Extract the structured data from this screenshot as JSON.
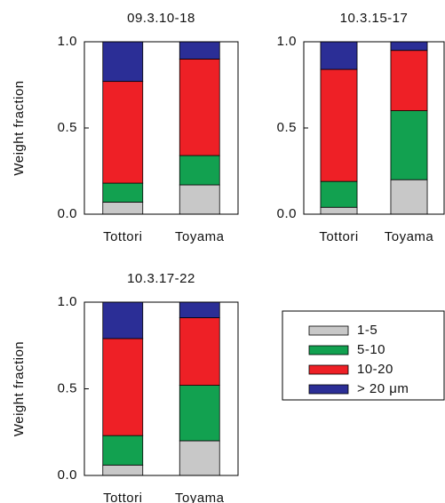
{
  "chart_data": [
    {
      "type": "stacked_bar",
      "title": "09.3.10-18",
      "y_label": "Weight fraction",
      "categories": [
        "Tottori",
        "Toyama"
      ],
      "series": [
        {
          "name": "1-5",
          "color": "#c8c8c8",
          "values": [
            0.07,
            0.17
          ]
        },
        {
          "name": "5-10",
          "color": "#12a150",
          "values": [
            0.11,
            0.17
          ]
        },
        {
          "name": "10-20",
          "color": "#ee2026",
          "values": [
            0.59,
            0.56
          ]
        },
        {
          "name": "> 20 μm",
          "color": "#2b2e96",
          "values": [
            0.23,
            0.1
          ]
        }
      ],
      "ylim": [
        0,
        1
      ],
      "yticks": [
        {
          "value": 0,
          "label": "0.0"
        },
        0.5,
        {
          "value": 1,
          "label": "1.0"
        }
      ]
    },
    {
      "type": "stacked_bar",
      "title": "10.3.15-17",
      "categories": [
        "Tottori",
        "Toyama"
      ],
      "series": [
        {
          "name": "1-5",
          "color": "#c8c8c8",
          "values": [
            0.04,
            0.2
          ]
        },
        {
          "name": "5-10",
          "color": "#12a150",
          "values": [
            0.15,
            0.4
          ]
        },
        {
          "name": "10-20",
          "color": "#ee2026",
          "values": [
            0.65,
            0.35
          ]
        },
        {
          "name": "> 20 μm",
          "color": "#2b2e96",
          "values": [
            0.16,
            0.05
          ]
        }
      ],
      "ylim": [
        0,
        1
      ],
      "yticks": [
        {
          "value": 0,
          "label": "0.0"
        },
        0.5,
        {
          "value": 1,
          "label": "1.0"
        }
      ]
    },
    {
      "type": "stacked_bar",
      "title": "10.3.17-22",
      "y_label": "Weight fraction",
      "categories": [
        "Tottori",
        "Toyama"
      ],
      "series": [
        {
          "name": "1-5",
          "color": "#c8c8c8",
          "values": [
            0.06,
            0.2
          ]
        },
        {
          "name": "5-10",
          "color": "#12a150",
          "values": [
            0.17,
            0.32
          ]
        },
        {
          "name": "10-20",
          "color": "#ee2026",
          "values": [
            0.56,
            0.39
          ]
        },
        {
          "name": "> 20 μm",
          "color": "#2b2e96",
          "values": [
            0.21,
            0.09
          ]
        }
      ],
      "ylim": [
        0,
        1
      ],
      "yticks": [
        {
          "value": 0,
          "label": "0.0"
        },
        0.5,
        {
          "value": 1,
          "label": "1.0"
        }
      ]
    }
  ]
}
